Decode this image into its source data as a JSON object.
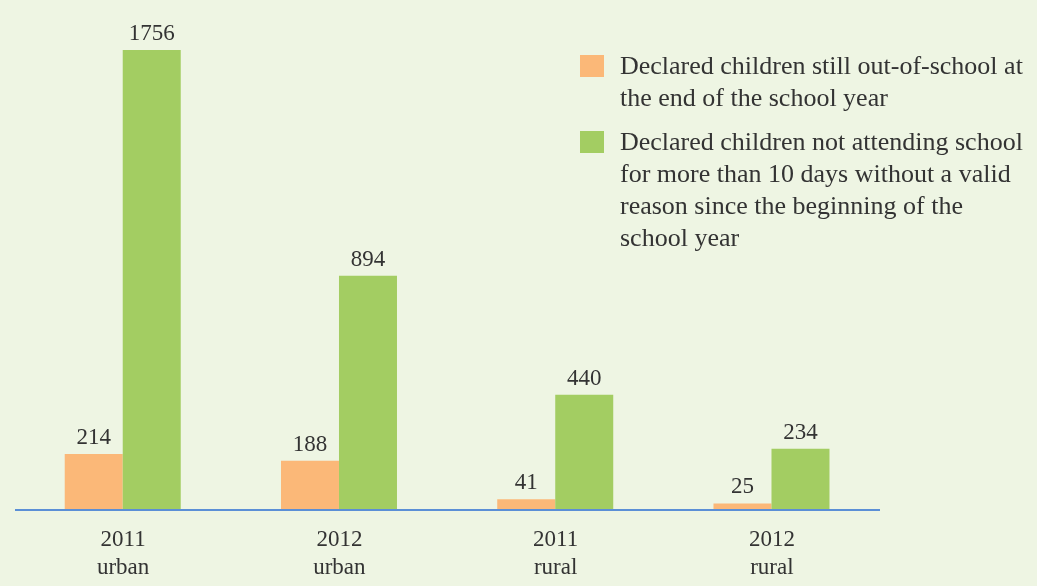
{
  "chart_data": {
    "type": "bar",
    "categories": [
      "2011\nurban",
      "2012\nurban",
      "2011\nrural",
      "2012\nrural"
    ],
    "series": [
      {
        "name": "Declared children still out-of-school at the end of the school year",
        "color": "#fbb878",
        "values": [
          214,
          188,
          41,
          25
        ]
      },
      {
        "name": "Declared children not attending school for more than 10 days without a valid reason since the beginning of the school year",
        "color": "#a3cd62",
        "values": [
          1756,
          894,
          440,
          234
        ]
      }
    ],
    "data_labels": true,
    "legend": "top right",
    "grid": false
  }
}
